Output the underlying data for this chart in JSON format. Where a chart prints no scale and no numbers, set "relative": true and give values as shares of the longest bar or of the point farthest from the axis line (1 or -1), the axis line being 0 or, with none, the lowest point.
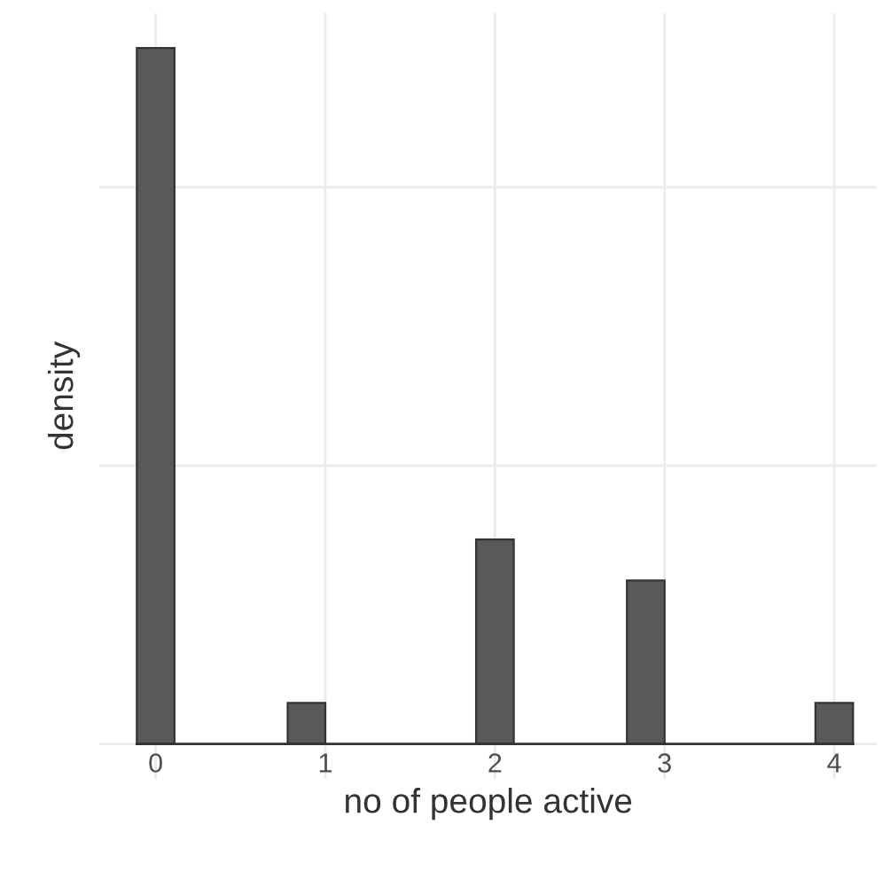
{
  "chart_data": {
    "type": "bar",
    "xlabel": "no of people active",
    "ylabel": "density",
    "relative": true,
    "x": [
      0,
      0.889,
      2,
      2.889,
      4
    ],
    "values": [
      1,
      0.059,
      0.294,
      0.235,
      0.059
    ],
    "color": "#595959",
    "xlim": [
      -0.33,
      4.25
    ],
    "xticks": [
      0,
      1,
      2,
      3,
      4
    ],
    "tick_labels": "x",
    "grid": true
  }
}
